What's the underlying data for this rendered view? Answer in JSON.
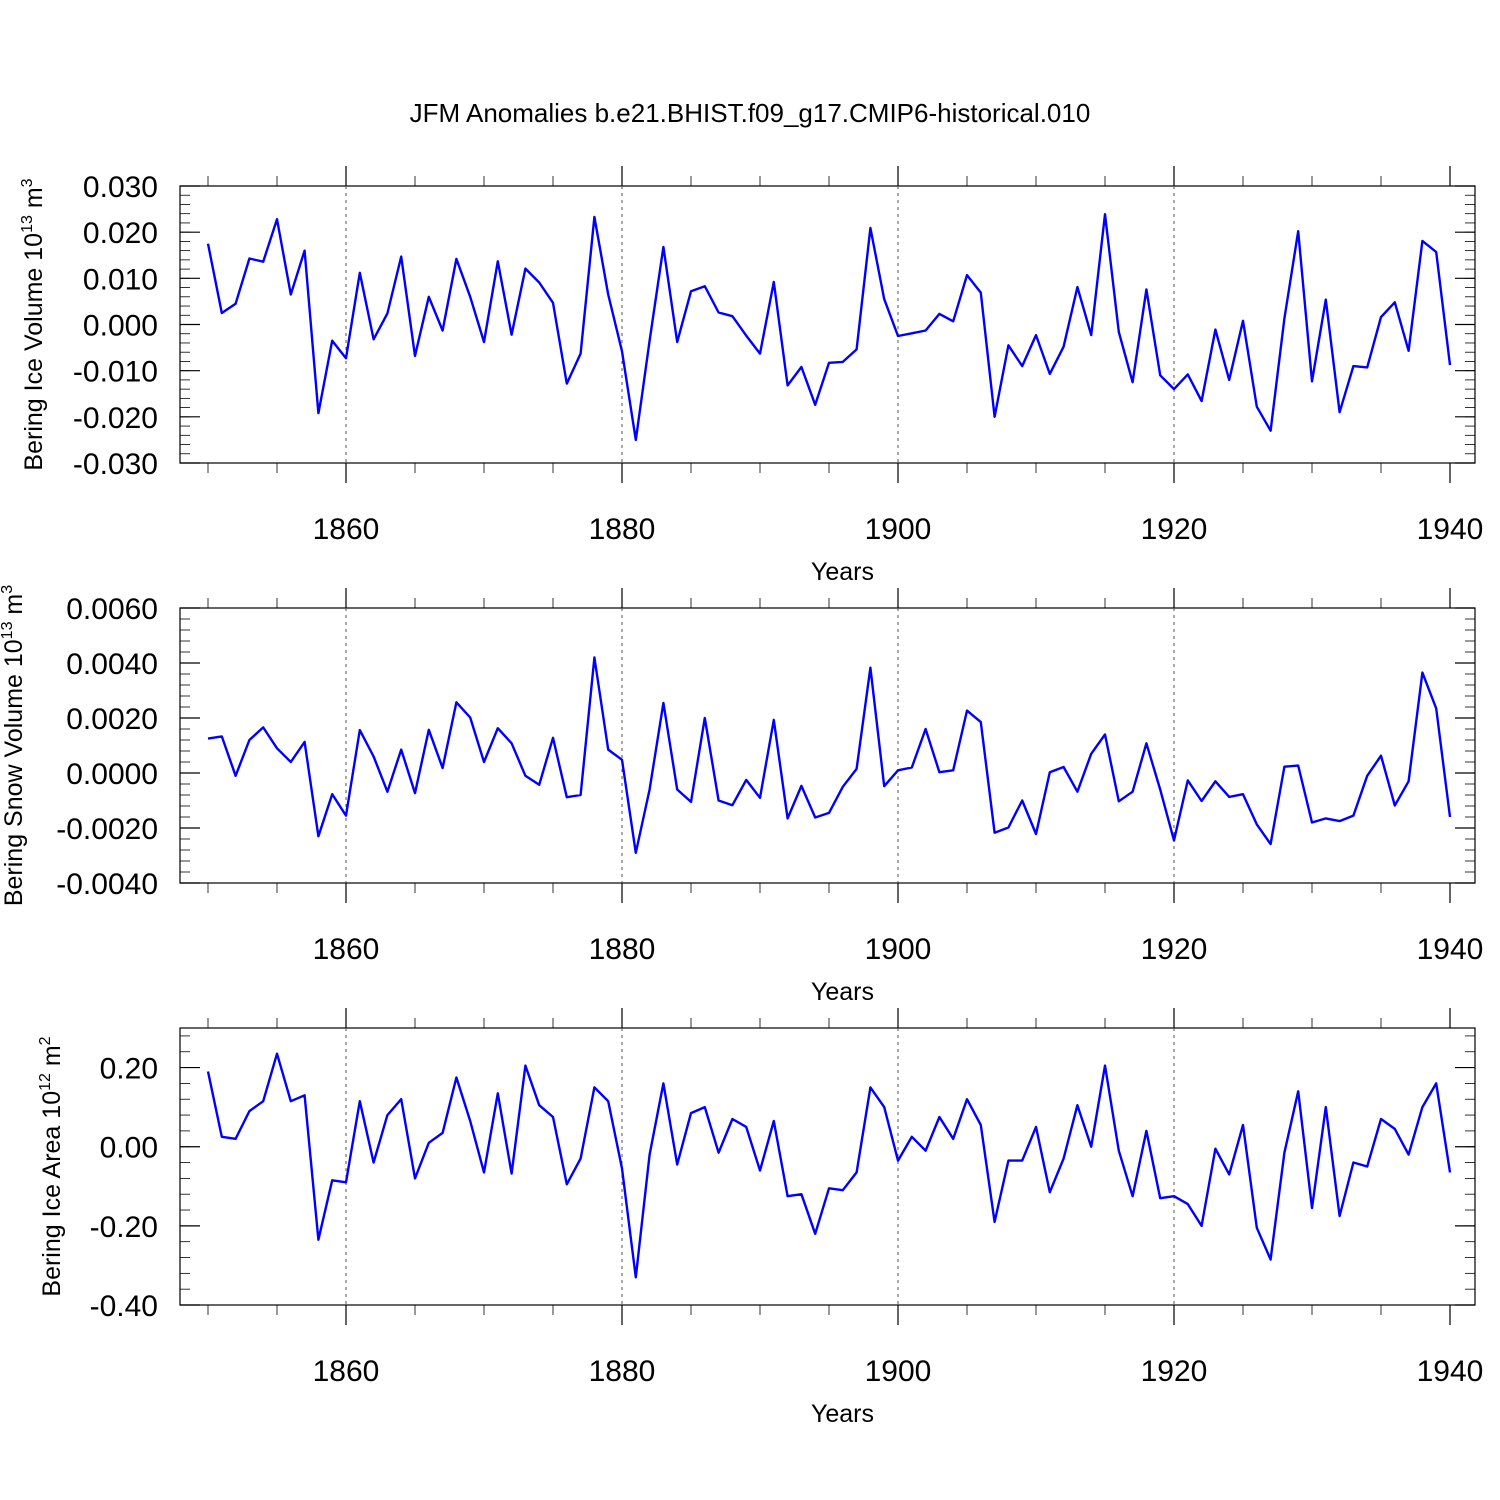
{
  "title": "JFM Anomalies b.e21.BHIST.f09_g17.CMIP6-historical.010",
  "chart_data": [
    {
      "type": "line",
      "name": "ice-volume",
      "ylabel": "Bering Ice Volume 10",
      "ylabel_exp": "13",
      "ylabel_unit": " m",
      "ylabel_unit_exp": "3",
      "xlabel": "Years",
      "xlim": [
        1850,
        1940
      ],
      "ylim": [
        -0.03,
        0.03
      ],
      "yticks": [
        -0.03,
        -0.02,
        -0.01,
        0.0,
        0.01,
        0.02,
        0.03
      ],
      "yticklabels": [
        "-0.030",
        "-0.020",
        "-0.010",
        "0.000",
        "0.010",
        "0.020",
        "0.030"
      ],
      "xticks": [
        1860,
        1880,
        1900,
        1920,
        1940
      ],
      "xticklabels": [
        "1860",
        "1880",
        "1900",
        "1920",
        "1940"
      ],
      "grid_x": [
        1860,
        1880,
        1900,
        1920
      ],
      "series": [
        {
          "name": "Bering Ice Volume",
          "color": "#0000ff",
          "x_start": 1850,
          "values": [
            0.0175,
            0.0025,
            0.0045,
            0.0143,
            0.0136,
            0.0228,
            0.0065,
            0.016,
            -0.0192,
            -0.0035,
            -0.0073,
            0.0112,
            -0.0032,
            0.0024,
            0.0147,
            -0.0068,
            0.006,
            -0.0013,
            0.0142,
            0.006,
            -0.0038,
            0.0137,
            -0.0022,
            0.0121,
            0.0091,
            0.0047,
            -0.0128,
            -0.0063,
            0.0233,
            0.0065,
            -0.0058,
            -0.025,
            -0.0035,
            0.0168,
            -0.0038,
            0.0072,
            0.0083,
            0.0026,
            0.0018,
            -0.0024,
            -0.0063,
            0.0092,
            -0.0132,
            -0.0092,
            -0.0174,
            -0.0083,
            -0.0081,
            -0.0054,
            0.0209,
            0.0055,
            -0.0025,
            -0.0019,
            -0.0013,
            0.0023,
            0.0007,
            0.0107,
            0.0069,
            -0.02,
            -0.0045,
            -0.009,
            -0.0023,
            -0.0107,
            -0.0048,
            0.0081,
            -0.0023,
            0.0239,
            -0.0016,
            -0.0125,
            0.0076,
            -0.011,
            -0.014,
            -0.0108,
            -0.0166,
            -0.0011,
            -0.012,
            0.0008,
            -0.0178,
            -0.023,
            0.0013,
            0.0202,
            -0.0123,
            0.0054,
            -0.019,
            -0.009,
            -0.0093,
            0.0016,
            0.0048,
            -0.0057,
            0.0181,
            0.0157,
            -0.0088
          ]
        }
      ]
    },
    {
      "type": "line",
      "name": "snow-volume",
      "ylabel": "Bering Snow Volume 10",
      "ylabel_exp": "13",
      "ylabel_unit": " m",
      "ylabel_unit_exp": "3",
      "xlabel": "Years",
      "xlim": [
        1850,
        1940
      ],
      "ylim": [
        -0.004,
        0.006
      ],
      "yticks": [
        -0.004,
        -0.002,
        0.0,
        0.002,
        0.004,
        0.006
      ],
      "yticklabels": [
        "-0.0040",
        "-0.0020",
        "0.0000",
        "0.0020",
        "0.0040",
        "0.0060"
      ],
      "xticks": [
        1860,
        1880,
        1900,
        1920,
        1940
      ],
      "xticklabels": [
        "1860",
        "1880",
        "1900",
        "1920",
        "1940"
      ],
      "grid_x": [
        1860,
        1880,
        1900,
        1920
      ],
      "series": [
        {
          "name": "Bering Snow Volume",
          "color": "#0000ff",
          "x_start": 1850,
          "values": [
            0.00125,
            0.00133,
            -0.0001,
            0.0012,
            0.00166,
            0.0009,
            0.0004,
            0.00113,
            -0.0023,
            -0.00077,
            -0.00155,
            0.00156,
            0.0006,
            -0.00068,
            0.00085,
            -0.00073,
            0.00157,
            0.00018,
            0.00257,
            0.00202,
            0.0004,
            0.00163,
            0.00108,
            -0.0001,
            -0.00043,
            0.00128,
            -0.00088,
            -0.0008,
            0.0042,
            0.00085,
            0.00048,
            -0.0029,
            -0.0006,
            0.00255,
            -0.0006,
            -0.00105,
            0.002,
            -0.001,
            -0.00117,
            -0.00025,
            -0.0009,
            0.00193,
            -0.00165,
            -0.00047,
            -0.00162,
            -0.00145,
            -0.0005,
            0.00015,
            0.00383,
            -0.00048,
            0.0001,
            0.0002,
            0.0016,
            3e-05,
            0.0001,
            0.00227,
            0.00185,
            -0.00217,
            -0.00198,
            -0.001,
            -0.00222,
            3e-05,
            0.00022,
            -0.00068,
            0.0007,
            0.0014,
            -0.00103,
            -0.00068,
            0.00108,
            -0.0006,
            -0.00245,
            -0.00027,
            -0.00102,
            -0.0003,
            -0.00087,
            -0.00077,
            -0.00187,
            -0.00258,
            0.00023,
            0.00027,
            -0.0018,
            -0.00165,
            -0.00175,
            -0.00155,
            -0.0001,
            0.00063,
            -0.00118,
            -0.0003,
            0.00365,
            0.00235,
            -0.0016
          ]
        }
      ]
    },
    {
      "type": "line",
      "name": "ice-area",
      "ylabel": "Bering Ice Area 10",
      "ylabel_exp": "12",
      "ylabel_unit": " m",
      "ylabel_unit_exp": "2",
      "xlabel": "Years",
      "xlim": [
        1850,
        1940
      ],
      "ylim": [
        -0.4,
        0.3
      ],
      "yticks": [
        -0.4,
        -0.2,
        0.0,
        0.2
      ],
      "yticklabels": [
        "-0.40",
        "-0.20",
        "0.00",
        "0.20"
      ],
      "xticks": [
        1860,
        1880,
        1900,
        1920,
        1940
      ],
      "xticklabels": [
        "1860",
        "1880",
        "1900",
        "1920",
        "1940"
      ],
      "grid_x": [
        1860,
        1880,
        1900,
        1920
      ],
      "series": [
        {
          "name": "Bering Ice Area",
          "color": "#0000ff",
          "x_start": 1850,
          "values": [
            0.19,
            0.025,
            0.02,
            0.09,
            0.115,
            0.235,
            0.115,
            0.13,
            -0.235,
            -0.085,
            -0.09,
            0.115,
            -0.04,
            0.08,
            0.12,
            -0.08,
            0.01,
            0.035,
            0.175,
            0.065,
            -0.065,
            0.135,
            -0.068,
            0.205,
            0.105,
            0.075,
            -0.095,
            -0.03,
            0.15,
            0.115,
            -0.055,
            -0.33,
            -0.02,
            0.16,
            -0.045,
            0.085,
            0.1,
            -0.015,
            0.07,
            0.05,
            -0.06,
            0.065,
            -0.125,
            -0.12,
            -0.22,
            -0.105,
            -0.11,
            -0.065,
            0.15,
            0.1,
            -0.035,
            0.025,
            -0.01,
            0.075,
            0.02,
            0.12,
            0.055,
            -0.19,
            -0.035,
            -0.035,
            0.05,
            -0.115,
            -0.03,
            0.105,
            0.0,
            0.205,
            -0.01,
            -0.125,
            0.04,
            -0.13,
            -0.125,
            -0.145,
            -0.2,
            -0.005,
            -0.07,
            0.055,
            -0.205,
            -0.285,
            -0.015,
            0.14,
            -0.155,
            0.1,
            -0.175,
            -0.04,
            -0.05,
            0.07,
            0.045,
            -0.02,
            0.1,
            0.16,
            -0.065
          ]
        }
      ]
    }
  ]
}
